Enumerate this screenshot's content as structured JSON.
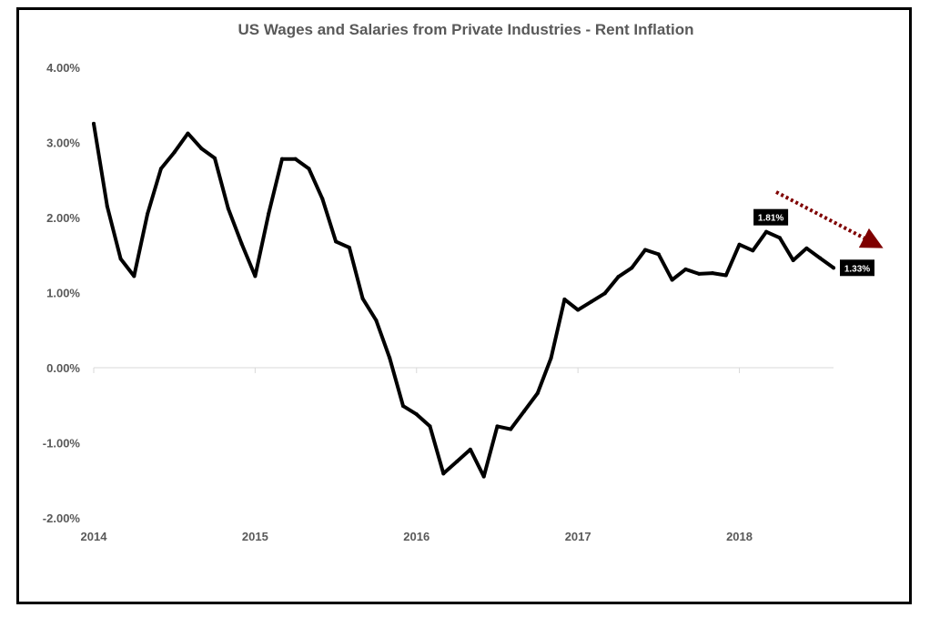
{
  "chart_data": {
    "type": "line",
    "title": "US Wages and Salaries from Private Industries - Rent Inflation",
    "xlabel": "",
    "ylabel": "",
    "ylim": [
      -2.0,
      4.0
    ],
    "yticks": [
      4.0,
      3.0,
      2.0,
      1.0,
      0.0,
      -1.0,
      -2.0
    ],
    "ytick_labels": [
      "4.00%",
      "3.00%",
      "2.00%",
      "1.00%",
      "0.00%",
      "-1.00%",
      "-2.00%"
    ],
    "xlim": [
      2014.0,
      2018.5833
    ],
    "xticks": [
      2014,
      2015,
      2016,
      2017,
      2018
    ],
    "xtick_labels": [
      "2014",
      "2015",
      "2016",
      "2017",
      "2018"
    ],
    "grid": false,
    "line_color": "#000000",
    "arrow_color": "#7f0000",
    "label_color": "#000000",
    "series": [
      {
        "name": "Rent Inflation",
        "x": [
          2014.0,
          2014.0833,
          2014.1667,
          2014.25,
          2014.3333,
          2014.4167,
          2014.5,
          2014.5833,
          2014.6667,
          2014.75,
          2014.8333,
          2014.9167,
          2015.0,
          2015.0833,
          2015.1667,
          2015.25,
          2015.3333,
          2015.4167,
          2015.5,
          2015.5833,
          2015.6667,
          2015.75,
          2015.8333,
          2015.9167,
          2016.0,
          2016.0833,
          2016.1667,
          2016.25,
          2016.3333,
          2016.4167,
          2016.5,
          2016.5833,
          2016.6667,
          2016.75,
          2016.8333,
          2016.9167,
          2017.0,
          2017.0833,
          2017.1667,
          2017.25,
          2017.3333,
          2017.4167,
          2017.5,
          2017.5833,
          2017.6667,
          2017.75,
          2017.8333,
          2017.9167,
          2018.0,
          2018.0833,
          2018.1667,
          2018.25,
          2018.3333,
          2018.4167,
          2018.5,
          2018.5833
        ],
        "values": [
          3.25,
          2.15,
          1.45,
          1.22,
          2.05,
          2.65,
          2.87,
          3.12,
          2.92,
          2.79,
          2.12,
          1.65,
          1.22,
          2.05,
          2.78,
          2.78,
          2.65,
          2.25,
          1.68,
          1.6,
          0.92,
          0.63,
          0.13,
          -0.51,
          -0.62,
          -0.78,
          -1.41,
          -1.25,
          -1.09,
          -1.45,
          -0.78,
          -0.82,
          -0.58,
          -0.34,
          0.13,
          0.91,
          0.77,
          0.88,
          0.99,
          1.21,
          1.33,
          1.57,
          1.51,
          1.17,
          1.31,
          1.25,
          1.26,
          1.23,
          1.64,
          1.56,
          1.81,
          1.73,
          1.43,
          1.59,
          1.46,
          1.33
        ]
      }
    ],
    "data_labels": [
      {
        "text": "1.81%",
        "x": 2018.1667,
        "y": 1.81
      },
      {
        "text": "1.33%",
        "x": 2018.5833,
        "y": 1.33
      }
    ],
    "annotation": "dotted-trend-arrow-down"
  }
}
